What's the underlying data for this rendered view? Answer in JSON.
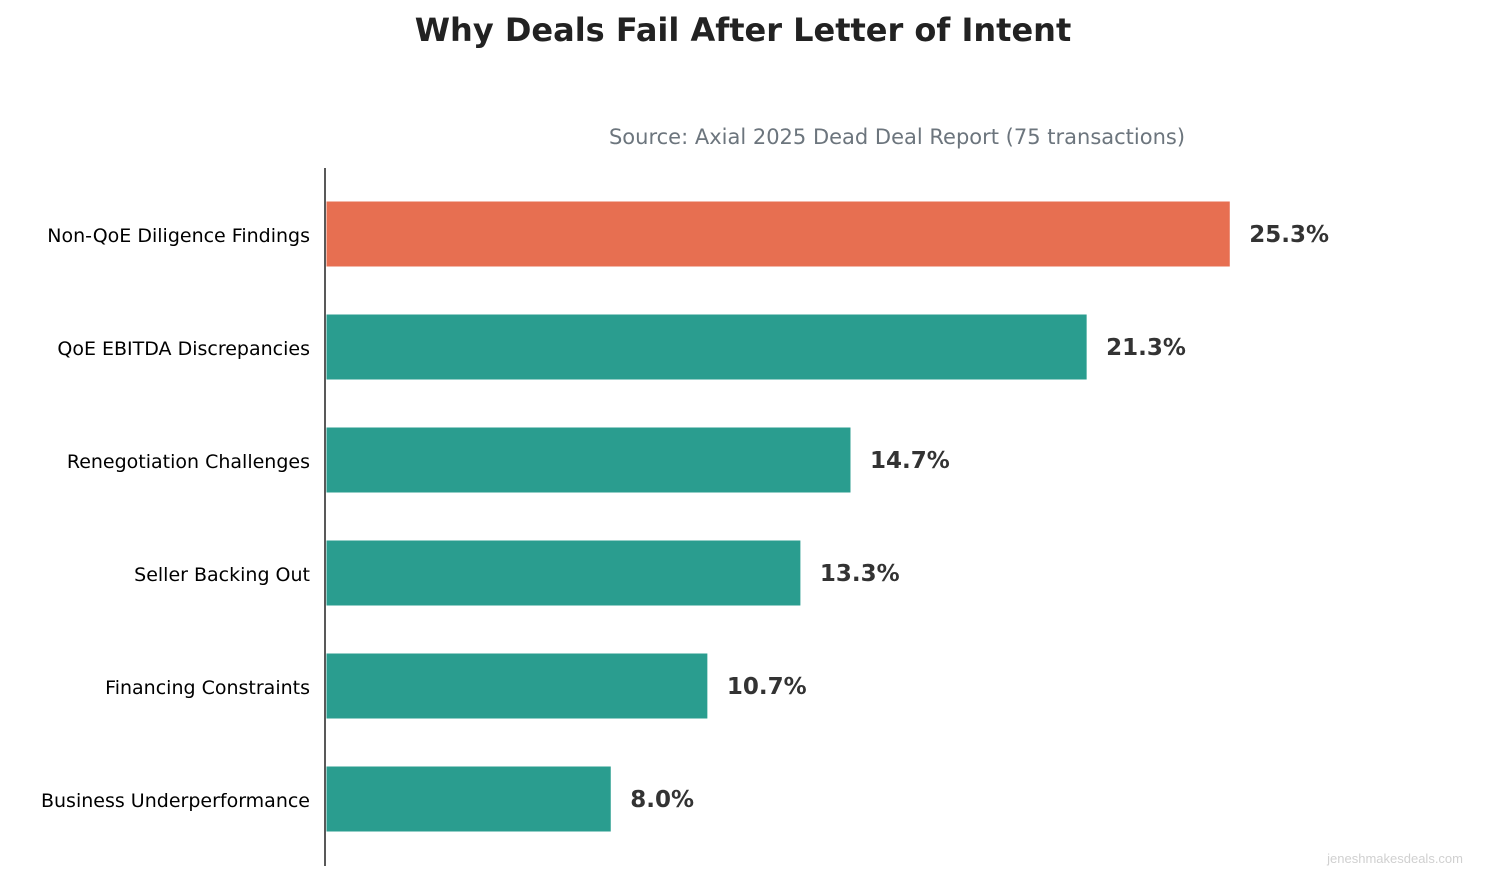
{
  "chart_data": {
    "type": "bar",
    "orientation": "horizontal",
    "title": "Why Deals Fail After Letter of Intent",
    "subtitle": "Source: Axial 2025 Dead Deal Report (75 transactions)",
    "xlabel": "",
    "ylabel": "",
    "categories": [
      "Non-QoE Diligence Findings",
      "QoE EBITDA Discrepancies",
      "Renegotiation Challenges",
      "Seller Backing Out",
      "Financing Constraints",
      "Business Underperformance"
    ],
    "values": [
      25.3,
      21.3,
      14.7,
      13.3,
      10.7,
      8.0
    ],
    "data_labels": [
      "25.3%",
      "21.3%",
      "14.7%",
      "13.3%",
      "10.7%",
      "8.0%"
    ],
    "value_unit": "%",
    "xlim": [
      0,
      32
    ],
    "grid": false,
    "x_axis_visible": false,
    "colors": {
      "highlight": "#E76F51",
      "default": "#2A9D8F",
      "label": "#333333",
      "title": "#222222",
      "subtitle": "#6C757D",
      "watermark": "#D0D0D0"
    },
    "highlighted_category": "Non-QoE Diligence Findings"
  },
  "watermark": "jeneshmakesdeals.com"
}
